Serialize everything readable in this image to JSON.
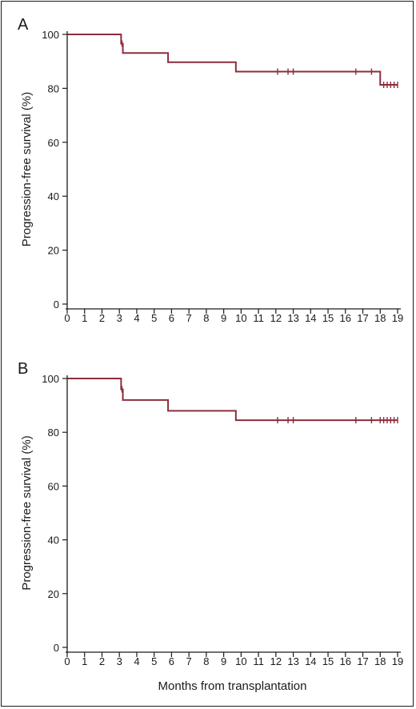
{
  "chart_data": [
    {
      "type": "line",
      "panel_label": "A",
      "xlabel": "",
      "ylabel": "Progression-free survival (%)",
      "xlim": [
        0,
        19
      ],
      "ylim": [
        0,
        100
      ],
      "x_ticks": [
        0,
        1,
        2,
        3,
        4,
        5,
        6,
        7,
        8,
        9,
        10,
        11,
        12,
        13,
        14,
        15,
        16,
        17,
        18,
        19
      ],
      "y_ticks": [
        0,
        20,
        40,
        60,
        80,
        100
      ],
      "series": [
        {
          "color": "#8c2d3c",
          "step": true,
          "x": [
            0,
            3.1,
            3.2,
            5.8,
            9.7,
            18.0,
            19.0
          ],
          "y": [
            100,
            96.6,
            93.1,
            89.7,
            86.2,
            81.3,
            81.3
          ],
          "censored": [
            [
              3.15,
              96.6
            ],
            [
              12.1,
              86.2
            ],
            [
              12.7,
              86.2
            ],
            [
              13.0,
              86.2
            ],
            [
              16.6,
              86.2
            ],
            [
              17.5,
              86.2
            ],
            [
              18.2,
              81.3
            ],
            [
              18.4,
              81.3
            ],
            [
              18.6,
              81.3
            ],
            [
              18.8,
              81.3
            ],
            [
              19.0,
              81.3
            ]
          ]
        }
      ]
    },
    {
      "type": "line",
      "panel_label": "B",
      "xlabel": "Months from transplantation",
      "ylabel": "Progression-free survival (%)",
      "xlim": [
        0,
        19
      ],
      "ylim": [
        0,
        100
      ],
      "x_ticks": [
        0,
        1,
        2,
        3,
        4,
        5,
        6,
        7,
        8,
        9,
        10,
        11,
        12,
        13,
        14,
        15,
        16,
        17,
        18,
        19
      ],
      "y_ticks": [
        0,
        20,
        40,
        60,
        80,
        100
      ],
      "series": [
        {
          "color": "#8c2d3c",
          "step": true,
          "x": [
            0,
            3.1,
            3.2,
            5.8,
            9.7,
            19.0
          ],
          "y": [
            100,
            96.0,
            92.0,
            88.0,
            84.5,
            84.5
          ],
          "censored": [
            [
              3.15,
              96.0
            ],
            [
              12.1,
              84.5
            ],
            [
              12.7,
              84.5
            ],
            [
              13.0,
              84.5
            ],
            [
              16.6,
              84.5
            ],
            [
              17.5,
              84.5
            ],
            [
              18.0,
              84.5
            ],
            [
              18.2,
              84.5
            ],
            [
              18.4,
              84.5
            ],
            [
              18.6,
              84.5
            ],
            [
              18.8,
              84.5
            ],
            [
              19.0,
              84.5
            ]
          ]
        }
      ]
    }
  ]
}
